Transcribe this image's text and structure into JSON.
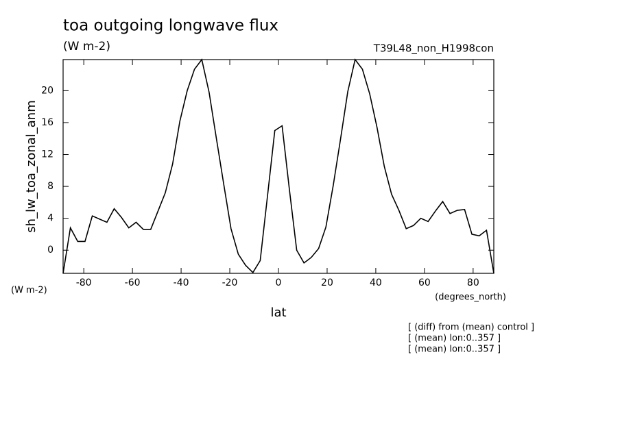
{
  "chart_data": {
    "type": "line",
    "title": "toa outgoing longwave flux",
    "subtitle": "(W m-2)",
    "dataset_label": "T39L48_non_H1998con",
    "ylabel": "sh_lw_toa_zonal_anm",
    "yunits": "(W m-2)",
    "xlabel": "lat",
    "xunits": "(degrees_north)",
    "notes": [
      "[ (diff) from (mean) control ]",
      "[ (mean) lon:0..357 ]",
      "[ (mean) lon:0..357 ]"
    ],
    "x": [
      -88.5,
      -85.5,
      -82.5,
      -79.5,
      -76.5,
      -73.5,
      -70.5,
      -67.5,
      -64.5,
      -61.5,
      -58.5,
      -55.5,
      -52.5,
      -49.5,
      -46.5,
      -43.5,
      -40.5,
      -37.5,
      -34.5,
      -31.5,
      -28.5,
      -25.5,
      -22.5,
      -19.5,
      -16.5,
      -13.5,
      -10.5,
      -7.5,
      -4.5,
      -1.5,
      1.5,
      4.5,
      7.5,
      10.5,
      13.5,
      16.5,
      19.5,
      22.5,
      25.5,
      28.5,
      31.5,
      34.5,
      37.5,
      40.5,
      43.5,
      46.5,
      49.5,
      52.5,
      55.5,
      58.5,
      61.5,
      64.5,
      67.5,
      70.5,
      73.5,
      76.5,
      79.5,
      82.5,
      85.5,
      88.5
    ],
    "series": [
      {
        "name": "sh_lw_toa_zonal_anm",
        "color": "#000000",
        "values": [
          -2.9,
          2.8,
          1.1,
          1.1,
          4.3,
          3.9,
          3.5,
          5.2,
          4.1,
          2.8,
          3.5,
          2.6,
          2.6,
          4.9,
          7.2,
          10.8,
          16.2,
          20.0,
          22.7,
          23.9,
          19.8,
          14.0,
          8.3,
          2.7,
          -0.5,
          -1.9,
          -2.8,
          -1.3,
          6.8,
          15.0,
          15.6,
          7.6,
          0.0,
          -1.6,
          -0.9,
          0.2,
          2.9,
          8.1,
          13.9,
          19.9,
          23.9,
          22.7,
          19.6,
          15.4,
          10.5,
          7.0,
          5.0,
          2.7,
          3.1,
          4.0,
          3.6,
          4.9,
          6.1,
          4.6,
          5.0,
          5.1,
          2.0,
          1.8,
          2.5,
          -2.9
        ]
      }
    ],
    "xlim": [
      -88.5,
      88.5
    ],
    "ylim": [
      -2.9,
      23.9
    ],
    "xticks": [
      -80,
      -60,
      -40,
      -20,
      0,
      20,
      40,
      60,
      80
    ],
    "yticks": [
      0,
      4,
      8,
      12,
      16,
      20
    ],
    "grid": false
  }
}
